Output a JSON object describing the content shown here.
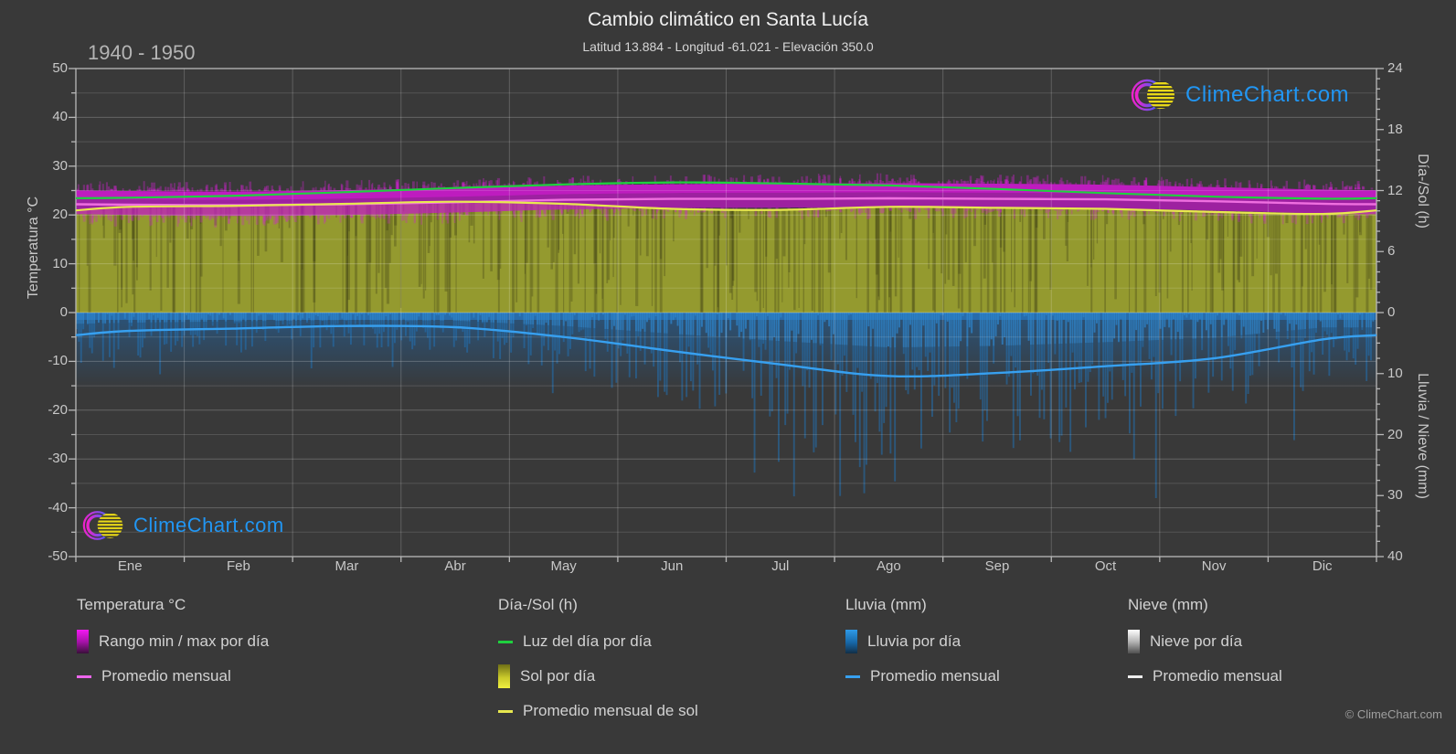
{
  "page": {
    "title": "Cambio climático en Santa Lucía",
    "subtitle": "Latitud 13.884 - Longitud -61.021 - Elevación 350.0",
    "period": "1940 - 1950",
    "watermark": "ClimeChart.com",
    "copyright": "© ClimeChart.com"
  },
  "colors": {
    "background": "#393939",
    "accent_blue": "#2196f3",
    "temp_band_magenta": "#c318c8",
    "temp_avg_line": "#ef6fe0",
    "daylight_green": "#1fd13f",
    "sun_fill_olive": "#9ca32f",
    "sun_avg_yellow": "#e8e84f",
    "rain_fill_blue": "#1d74c0",
    "rain_avg_line": "#37a0f0",
    "grid": "#5a5a5a",
    "text": "#c8c8c8"
  },
  "legend": {
    "groups": [
      {
        "title": "Temperatura °C",
        "items": [
          {
            "swatch": "gradient-magenta",
            "label": "Rango min / max por día"
          },
          {
            "swatch": "line-magenta",
            "label": "Promedio mensual"
          }
        ]
      },
      {
        "title": "Día-/Sol (h)",
        "items": [
          {
            "swatch": "line-green",
            "label": "Luz del día por día"
          },
          {
            "swatch": "gradient-yellow",
            "label": "Sol por día"
          },
          {
            "swatch": "line-yellow",
            "label": "Promedio mensual de sol"
          }
        ]
      },
      {
        "title": "Lluvia (mm)",
        "items": [
          {
            "swatch": "gradient-blue",
            "label": "Lluvia por día"
          },
          {
            "swatch": "line-blue",
            "label": "Promedio mensual"
          }
        ]
      },
      {
        "title": "Nieve (mm)",
        "items": [
          {
            "swatch": "gradient-snow",
            "label": "Nieve por día"
          },
          {
            "swatch": "line-white",
            "label": "Promedio mensual"
          }
        ]
      }
    ]
  },
  "chart_data": {
    "type": "area",
    "subtype": "climate-composite",
    "x_months": [
      "Ene",
      "Feb",
      "Mar",
      "Abr",
      "May",
      "Jun",
      "Jul",
      "Ago",
      "Sep",
      "Oct",
      "Nov",
      "Dic"
    ],
    "temp_axis": {
      "label": "Temperatura °C",
      "min": -50,
      "max": 50,
      "ticks": [
        50,
        40,
        30,
        20,
        10,
        0,
        -10,
        -20,
        -30,
        -40,
        -50
      ]
    },
    "daysun_axis": {
      "label": "Día-/Sol (h)",
      "min": 0,
      "max": 24,
      "ticks": [
        24,
        18,
        12,
        6,
        0
      ]
    },
    "rain_axis": {
      "label": "Lluvia / Nieve (mm)",
      "min": 0,
      "max": 40,
      "ticks": [
        10,
        20,
        30,
        40
      ]
    },
    "series": {
      "daylight_hours_per_day": [
        11.3,
        11.5,
        11.85,
        12.25,
        12.6,
        12.8,
        12.7,
        12.5,
        12.15,
        11.75,
        11.4,
        11.2
      ],
      "sun_hours_monthly_avg": [
        10.4,
        10.5,
        10.7,
        10.9,
        10.7,
        10.2,
        10.1,
        10.4,
        10.3,
        10.2,
        9.9,
        9.7
      ],
      "temp_monthly_avg_c": [
        22.1,
        22.0,
        22.2,
        22.6,
        23.1,
        23.3,
        23.3,
        23.4,
        23.3,
        23.2,
        22.8,
        22.3
      ],
      "temp_daily_max_c": [
        24.9,
        24.8,
        25.1,
        25.5,
        26.0,
        26.3,
        26.4,
        26.5,
        26.4,
        26.2,
        25.7,
        25.2
      ],
      "temp_daily_min_c": [
        20.0,
        19.8,
        20.0,
        20.5,
        21.1,
        21.4,
        21.5,
        21.5,
        21.4,
        21.3,
        20.9,
        20.3
      ],
      "rain_monthly_avg_mm": [
        3.0,
        2.6,
        2.2,
        2.4,
        4.0,
        6.3,
        8.5,
        10.4,
        9.9,
        8.8,
        7.5,
        4.4
      ],
      "snow_monthly_avg_mm": [
        0,
        0,
        0,
        0,
        0,
        0,
        0,
        0,
        0,
        0,
        0,
        0
      ]
    }
  }
}
